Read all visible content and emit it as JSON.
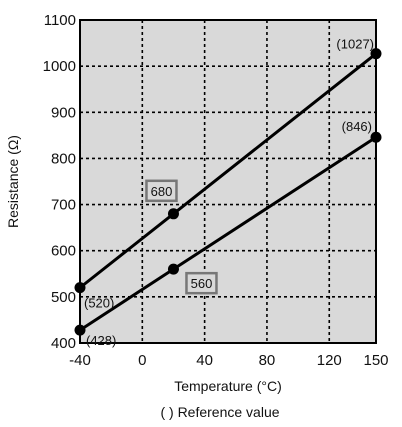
{
  "chart_data": {
    "type": "line",
    "xlabel": "Temperature (°C)",
    "ylabel": "Resistance (Ω)",
    "xlim": [
      -40,
      150
    ],
    "ylim": [
      400,
      1100
    ],
    "x_ticks": [
      -40,
      0,
      40,
      80,
      120,
      150
    ],
    "y_ticks": [
      400,
      500,
      600,
      700,
      800,
      900,
      1000,
      1100
    ],
    "grid": true,
    "plot_background": "#d9d9d9",
    "line_color": "#000000",
    "series": [
      {
        "points": [
          {
            "x": -40,
            "y": 520,
            "label": "(520)"
          },
          {
            "x": 20,
            "y": 680,
            "label": "680",
            "boxed": true
          },
          {
            "x": 150,
            "y": 1027,
            "label": "(1027)"
          }
        ]
      },
      {
        "points": [
          {
            "x": -40,
            "y": 428,
            "label": "(428)"
          },
          {
            "x": 20,
            "y": 560,
            "label": "560",
            "boxed": true
          },
          {
            "x": 150,
            "y": 846,
            "label": "(846)"
          }
        ]
      }
    ],
    "footnote": "( ) Reference value"
  }
}
